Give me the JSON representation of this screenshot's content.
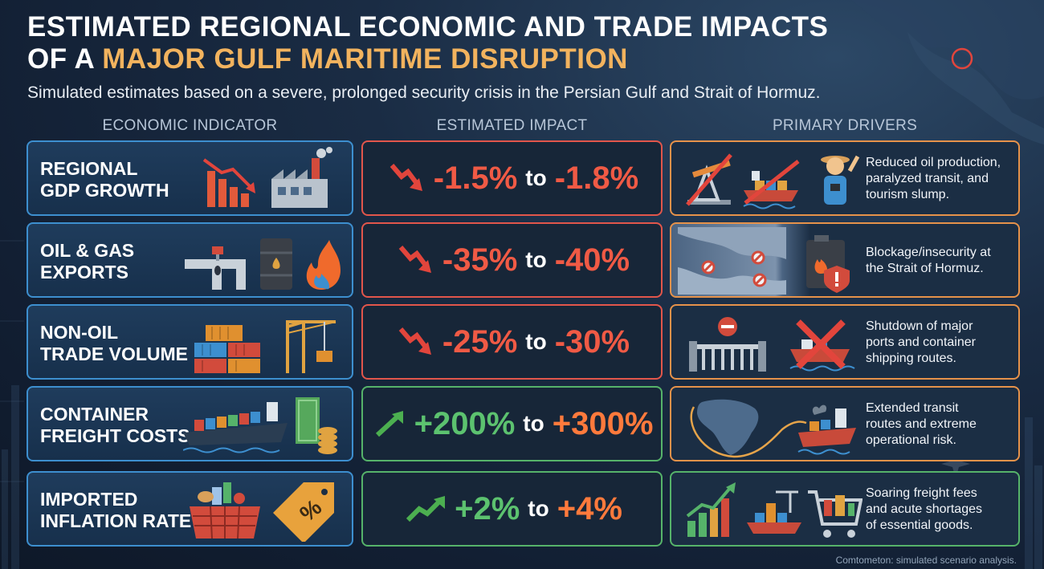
{
  "header": {
    "title_line1": "ESTIMATED REGIONAL ECONOMIC AND TRADE IMPACTS",
    "title_line2_prefix": "OF A ",
    "title_line2_accent": "MAJOR GULF MARITIME DISRUPTION",
    "subtitle": "Simulated estimates based on a severe, prolonged security crisis in the Persian Gulf and Strait of Hormuz."
  },
  "columns": {
    "indicator": "ECONOMIC INDICATOR",
    "impact": "ESTIMATED IMPACT",
    "drivers": "PRIMARY DRIVERS"
  },
  "rows": [
    {
      "indicator_line1": "REGIONAL",
      "indicator_line2": "GDP GROWTH",
      "from": "-1.5%",
      "to_word": "to",
      "to": "-1.8%",
      "trend": "down",
      "driver_line1": "Reduced oil production,",
      "driver_line2": "paralyzed transit, and",
      "driver_line3": "tourism slump.",
      "indicator_icons": [
        "declining-bar-chart-icon",
        "factory-icon"
      ],
      "driver_icons": [
        "crossed-oil-pump-icon",
        "crossed-cargo-ship-icon",
        "tourist-icon"
      ]
    },
    {
      "indicator_line1": "OIL & GAS",
      "indicator_line2": "EXPORTS",
      "from": "-35%",
      "to_word": "to",
      "to": "-40%",
      "trend": "down",
      "driver_line1": "Blockage/insecurity at",
      "driver_line2": "the Strait of Hormuz.",
      "driver_line3": "",
      "indicator_icons": [
        "pipeline-valve-icon",
        "oil-barrel-icon",
        "gas-flame-icon"
      ],
      "driver_icons": [
        "strait-map-icon",
        "fuel-canister-warning-icon"
      ]
    },
    {
      "indicator_line1": "NON-OIL",
      "indicator_line2": "TRADE VOLUME",
      "from": "-25%",
      "to_word": "to",
      "to": "-30%",
      "trend": "down",
      "driver_line1": "Shutdown of major",
      "driver_line2": "ports and container",
      "driver_line3": "shipping routes.",
      "indicator_icons": [
        "shipping-containers-icon",
        "port-crane-icon"
      ],
      "driver_icons": [
        "closed-port-gate-icon",
        "crossed-ship-icon"
      ]
    },
    {
      "indicator_line1": "CONTAINER",
      "indicator_line2": "FREIGHT COSTS",
      "from": "+200%",
      "to_word": "to",
      "to": "+300%",
      "trend": "up",
      "driver_line1": "Extended transit",
      "driver_line2": "routes and extreme",
      "driver_line3": "operational risk.",
      "indicator_icons": [
        "container-ship-icon",
        "money-stack-icon"
      ],
      "driver_icons": [
        "africa-route-map-icon",
        "damaged-ship-icon"
      ]
    },
    {
      "indicator_line1": "IMPORTED",
      "indicator_line2": "INFLATION RATE",
      "from": "+2%",
      "to_word": "to",
      "to": "+4%",
      "trend": "up",
      "driver_line1": "Soaring freight fees",
      "driver_line2": "and acute shortages",
      "driver_line3": "of essential goods.",
      "indicator_icons": [
        "grocery-basket-icon",
        "percent-price-tag-icon"
      ],
      "driver_icons": [
        "rising-bar-chart-icon",
        "cargo-ship-icon",
        "shopping-cart-icon"
      ]
    }
  ],
  "footer": "Comtometon: simulated scenario analysis.",
  "colors": {
    "background": "#152438",
    "accent_title": "#f2b35e",
    "negative": "#f05a45",
    "positive": "#5cc26f",
    "orange": "#ff7a3c",
    "indicator_border": "#3d8fcf",
    "driver_border": "#e6924a"
  }
}
